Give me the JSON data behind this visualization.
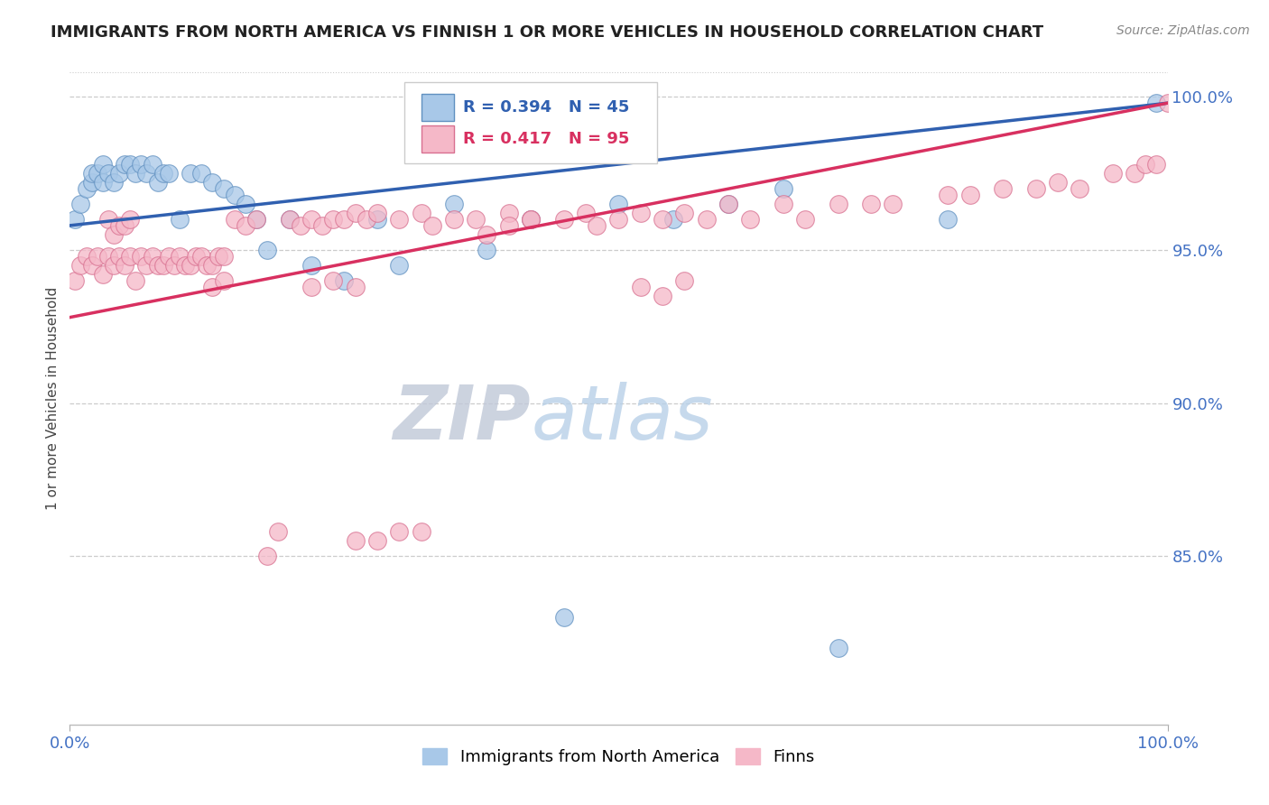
{
  "title": "IMMIGRANTS FROM NORTH AMERICA VS FINNISH 1 OR MORE VEHICLES IN HOUSEHOLD CORRELATION CHART",
  "source_text": "Source: ZipAtlas.com",
  "ylabel": "1 or more Vehicles in Household",
  "xlim": [
    0.0,
    1.0
  ],
  "ylim": [
    0.795,
    1.008
  ],
  "yticks": [
    0.85,
    0.9,
    0.95,
    1.0
  ],
  "ytick_labels": [
    "85.0%",
    "90.0%",
    "95.0%",
    "100.0%"
  ],
  "xtick_labels": [
    "0.0%",
    "100.0%"
  ],
  "legend_blue_r": "R = 0.394",
  "legend_blue_n": "N = 45",
  "legend_pink_r": "R = 0.417",
  "legend_pink_n": "N = 95",
  "legend_blue_label": "Immigrants from North America",
  "legend_pink_label": "Finns",
  "blue_color": "#a8c8e8",
  "pink_color": "#f5b8c8",
  "blue_edge_color": "#6090c0",
  "pink_edge_color": "#d87090",
  "blue_line_color": "#3060b0",
  "pink_line_color": "#d83060",
  "title_color": "#222222",
  "axis_label_color": "#444444",
  "right_tick_color": "#4472c4",
  "bottom_tick_color": "#4472c4",
  "watermark_zip_color": "#c0c8d8",
  "watermark_atlas_color": "#b8d0e8",
  "grid_color": "#cccccc",
  "blue_x": [
    0.005,
    0.01,
    0.015,
    0.02,
    0.02,
    0.025,
    0.03,
    0.03,
    0.035,
    0.04,
    0.045,
    0.05,
    0.055,
    0.06,
    0.065,
    0.07,
    0.075,
    0.08,
    0.085,
    0.09,
    0.1,
    0.11,
    0.12,
    0.13,
    0.14,
    0.15,
    0.16,
    0.17,
    0.18,
    0.2,
    0.22,
    0.25,
    0.28,
    0.3,
    0.35,
    0.38,
    0.42,
    0.45,
    0.5,
    0.55,
    0.6,
    0.65,
    0.7,
    0.8,
    0.99
  ],
  "blue_y": [
    0.96,
    0.965,
    0.97,
    0.972,
    0.975,
    0.975,
    0.972,
    0.978,
    0.975,
    0.972,
    0.975,
    0.978,
    0.978,
    0.975,
    0.978,
    0.975,
    0.978,
    0.972,
    0.975,
    0.975,
    0.96,
    0.975,
    0.975,
    0.972,
    0.97,
    0.968,
    0.965,
    0.96,
    0.95,
    0.96,
    0.945,
    0.94,
    0.96,
    0.945,
    0.965,
    0.95,
    0.96,
    0.83,
    0.965,
    0.96,
    0.965,
    0.97,
    0.82,
    0.96,
    0.998
  ],
  "pink_x": [
    0.005,
    0.01,
    0.015,
    0.02,
    0.025,
    0.03,
    0.035,
    0.04,
    0.045,
    0.05,
    0.055,
    0.06,
    0.065,
    0.07,
    0.075,
    0.08,
    0.085,
    0.09,
    0.095,
    0.1,
    0.105,
    0.11,
    0.115,
    0.12,
    0.125,
    0.13,
    0.135,
    0.14,
    0.15,
    0.16,
    0.17,
    0.18,
    0.19,
    0.2,
    0.21,
    0.22,
    0.23,
    0.24,
    0.25,
    0.26,
    0.27,
    0.28,
    0.3,
    0.32,
    0.33,
    0.35,
    0.37,
    0.4,
    0.42,
    0.45,
    0.47,
    0.48,
    0.5,
    0.52,
    0.54,
    0.56,
    0.58,
    0.6,
    0.62,
    0.65,
    0.67,
    0.7,
    0.73,
    0.75,
    0.8,
    0.82,
    0.85,
    0.88,
    0.9,
    0.92,
    0.95,
    0.97,
    0.98,
    0.99,
    1.0,
    0.52,
    0.54,
    0.56,
    0.22,
    0.24,
    0.26,
    0.13,
    0.14,
    0.035,
    0.04,
    0.045,
    0.05,
    0.055,
    0.38,
    0.4,
    0.42,
    0.26,
    0.28,
    0.3,
    0.32
  ],
  "pink_y": [
    0.94,
    0.945,
    0.948,
    0.945,
    0.948,
    0.942,
    0.948,
    0.945,
    0.948,
    0.945,
    0.948,
    0.94,
    0.948,
    0.945,
    0.948,
    0.945,
    0.945,
    0.948,
    0.945,
    0.948,
    0.945,
    0.945,
    0.948,
    0.948,
    0.945,
    0.945,
    0.948,
    0.948,
    0.96,
    0.958,
    0.96,
    0.85,
    0.858,
    0.96,
    0.958,
    0.96,
    0.958,
    0.96,
    0.96,
    0.962,
    0.96,
    0.962,
    0.96,
    0.962,
    0.958,
    0.96,
    0.96,
    0.962,
    0.96,
    0.96,
    0.962,
    0.958,
    0.96,
    0.962,
    0.96,
    0.962,
    0.96,
    0.965,
    0.96,
    0.965,
    0.96,
    0.965,
    0.965,
    0.965,
    0.968,
    0.968,
    0.97,
    0.97,
    0.972,
    0.97,
    0.975,
    0.975,
    0.978,
    0.978,
    0.998,
    0.938,
    0.935,
    0.94,
    0.938,
    0.94,
    0.938,
    0.938,
    0.94,
    0.96,
    0.955,
    0.958,
    0.958,
    0.96,
    0.955,
    0.958,
    0.96,
    0.855,
    0.855,
    0.858,
    0.858
  ]
}
